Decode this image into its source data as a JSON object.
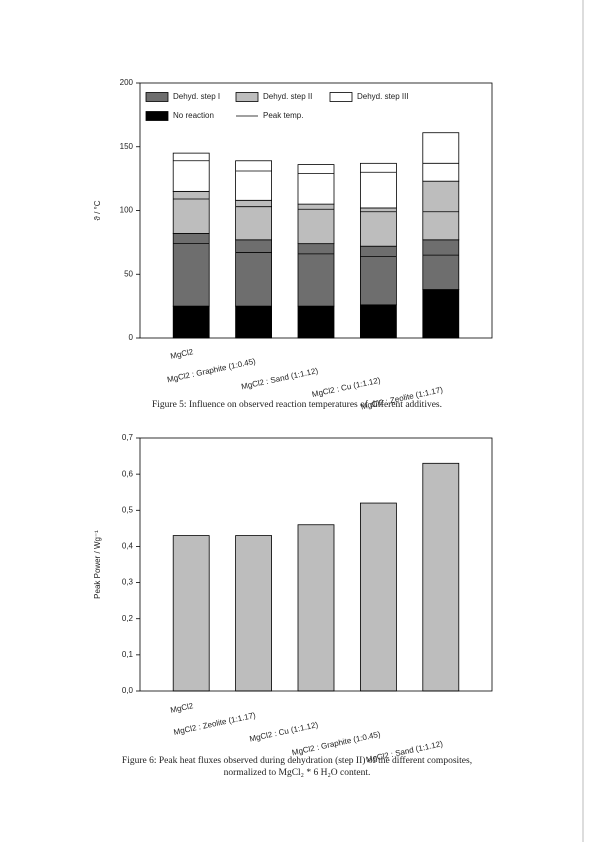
{
  "chart_data": [
    {
      "type": "stacked_bar",
      "ylabel": "ϑ / °C",
      "categories": [
        "MgCl2",
        "MgCl2 : Graphite (1:0.45)",
        "MgCl2 : Sand (1:1.12)",
        "MgCl2 : Cu (1:1.12)",
        "MgCl2 : Zeolite (1:1.17)"
      ],
      "series": [
        {
          "name": "No reaction",
          "color": "#000000",
          "values": [
            25,
            25,
            25,
            26,
            38
          ]
        },
        {
          "name": "Dehyd. step I",
          "color": "#6e6e6e",
          "values": [
            57,
            52,
            49,
            46,
            39
          ],
          "peaks": [
            74,
            67,
            66,
            64,
            65
          ]
        },
        {
          "name": "Dehyd. step II",
          "color": "#bdbdbd",
          "values": [
            33,
            31,
            31,
            30,
            46
          ],
          "peaks": [
            109,
            103,
            101,
            99,
            99
          ]
        },
        {
          "name": "Dehyd. step III",
          "color": "#ffffff",
          "values": [
            30,
            31,
            31,
            35,
            38
          ],
          "peaks": [
            139,
            131,
            129,
            130,
            137
          ]
        }
      ],
      "peak_legend": "Peak temp.",
      "ylim": [
        0,
        200
      ],
      "yticks": [
        0,
        50,
        100,
        150,
        200
      ],
      "caption": [
        "Figure 5: Influence on observed reaction temperatures of different additives."
      ]
    },
    {
      "type": "bar",
      "ylabel": "Peak Power / Wg⁻¹",
      "categories": [
        "MgCl2",
        "MgCl2 : Zeolite (1:1.17)",
        "MgCl2 : Cu (1:1.12)",
        "MgCl2 : Graphite (1:0.45)",
        "MgCl2 : Sand (1:1.12)"
      ],
      "values": [
        0.43,
        0.43,
        0.46,
        0.52,
        0.63
      ],
      "color": "#bdbdbd",
      "ylim": [
        0,
        0.7
      ],
      "yticks": [
        {
          "value": 0,
          "label": "0,0"
        },
        {
          "value": 0.1,
          "label": "0,1"
        },
        {
          "value": 0.2,
          "label": "0,2"
        },
        {
          "value": 0.3,
          "label": "0,3"
        },
        {
          "value": 0.4,
          "label": "0,4"
        },
        {
          "value": 0.5,
          "label": "0,5"
        },
        {
          "value": 0.6,
          "label": "0,6"
        },
        {
          "value": 0.7,
          "label": "0,7"
        }
      ],
      "caption": [
        "Figure 6: Peak heat fluxes observed during dehydration (step II) of the different composites,",
        "normalized to MgCl₂ * 6 H₂O content."
      ]
    }
  ]
}
